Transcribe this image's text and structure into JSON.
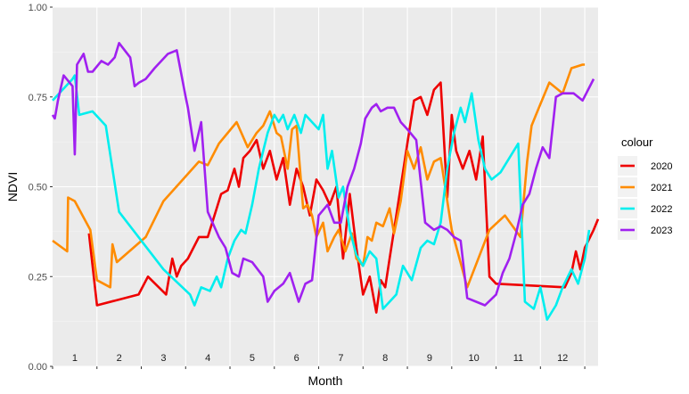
{
  "chart_data": {
    "type": "line",
    "xlabel": "Month",
    "ylabel": "NDVI",
    "xlim": [
      0,
      12.3
    ],
    "ylim": [
      0,
      1
    ],
    "y_ticks": [
      "0.00",
      "0.25",
      "0.50",
      "0.75",
      "1.00"
    ],
    "y_tick_values": [
      0,
      0.25,
      0.5,
      0.75,
      1
    ],
    "month_labels": [
      "1",
      "2",
      "3",
      "4",
      "5",
      "6",
      "7",
      "8",
      "9",
      "10",
      "11",
      "12"
    ],
    "grid": true,
    "legend": {
      "title": "colour",
      "position": "right"
    },
    "series": [
      {
        "name": "2020",
        "color": "#ee0000",
        "x": [
          0.82,
          1.0,
          1.94,
          2.15,
          2.56,
          2.7,
          2.8,
          2.9,
          3.05,
          3.3,
          3.5,
          3.7,
          3.8,
          3.95,
          4.1,
          4.2,
          4.3,
          4.45,
          4.6,
          4.75,
          4.9,
          5.05,
          5.2,
          5.35,
          5.5,
          5.65,
          5.8,
          5.95,
          6.1,
          6.25,
          6.4,
          6.55,
          6.7,
          6.85,
          7.0,
          7.15,
          7.3,
          7.4,
          7.5,
          7.6,
          7.7,
          7.85,
          8.0,
          8.15,
          8.3,
          8.45,
          8.6,
          8.75,
          8.9,
          9.0,
          9.1,
          9.25,
          9.4,
          9.55,
          9.7,
          9.85,
          10.0,
          11.55,
          11.7,
          11.8,
          11.9,
          12.0,
          12.2,
          12.3
        ],
        "values": [
          0.37,
          0.17,
          0.2,
          0.25,
          0.2,
          0.3,
          0.25,
          0.28,
          0.3,
          0.36,
          0.36,
          0.44,
          0.48,
          0.49,
          0.55,
          0.5,
          0.58,
          0.6,
          0.63,
          0.55,
          0.6,
          0.52,
          0.58,
          0.45,
          0.55,
          0.5,
          0.42,
          0.52,
          0.49,
          0.45,
          0.5,
          0.3,
          0.48,
          0.33,
          0.2,
          0.25,
          0.15,
          0.24,
          0.22,
          0.3,
          0.38,
          0.5,
          0.62,
          0.74,
          0.75,
          0.7,
          0.77,
          0.79,
          0.47,
          0.7,
          0.6,
          0.55,
          0.6,
          0.52,
          0.64,
          0.25,
          0.23,
          0.22,
          0.26,
          0.32,
          0.27,
          0.33,
          0.38,
          0.41
        ]
      },
      {
        "name": "2021",
        "color": "#ff8c00",
        "x": [
          0.0,
          0.33,
          0.35,
          0.5,
          0.85,
          1.0,
          1.3,
          1.35,
          1.45,
          2.1,
          2.5,
          3.3,
          3.5,
          3.75,
          4.15,
          4.4,
          4.6,
          4.75,
          4.9,
          5.05,
          5.15,
          5.3,
          5.4,
          5.5,
          5.65,
          5.75,
          5.85,
          5.95,
          6.1,
          6.2,
          6.35,
          6.45,
          6.6,
          6.75,
          6.85,
          7.0,
          7.1,
          7.2,
          7.3,
          7.45,
          7.6,
          7.7,
          7.85,
          8.0,
          8.15,
          8.3,
          8.45,
          8.6,
          8.75,
          9.0,
          9.35,
          9.85,
          10.2,
          10.55,
          10.7,
          10.8,
          10.9,
          11.0,
          11.2,
          11.5,
          11.7,
          11.95,
          12.0
        ],
        "values": [
          0.35,
          0.32,
          0.47,
          0.46,
          0.38,
          0.24,
          0.22,
          0.34,
          0.29,
          0.36,
          0.46,
          0.57,
          0.56,
          0.62,
          0.68,
          0.61,
          0.65,
          0.67,
          0.71,
          0.65,
          0.64,
          0.55,
          0.66,
          0.67,
          0.44,
          0.45,
          0.42,
          0.36,
          0.4,
          0.32,
          0.36,
          0.38,
          0.32,
          0.37,
          0.3,
          0.28,
          0.36,
          0.35,
          0.4,
          0.39,
          0.44,
          0.37,
          0.46,
          0.6,
          0.55,
          0.61,
          0.52,
          0.57,
          0.58,
          0.38,
          0.22,
          0.38,
          0.42,
          0.36,
          0.57,
          0.67,
          0.7,
          0.73,
          0.79,
          0.76,
          0.83,
          0.84,
          0.84
        ]
      },
      {
        "name": "2022",
        "color": "#00eeee",
        "x": [
          0.0,
          0.45,
          0.5,
          0.6,
          0.9,
          1.2,
          1.5,
          2.5,
          3.1,
          3.2,
          3.35,
          3.55,
          3.7,
          3.8,
          3.95,
          4.1,
          4.25,
          4.35,
          4.5,
          4.65,
          4.75,
          4.85,
          5.0,
          5.1,
          5.2,
          5.3,
          5.45,
          5.6,
          5.7,
          5.85,
          6.0,
          6.1,
          6.2,
          6.3,
          6.45,
          6.55,
          6.7,
          6.85,
          7.0,
          7.15,
          7.3,
          7.45,
          7.6,
          7.75,
          7.9,
          8.1,
          8.3,
          8.45,
          8.6,
          8.75,
          8.9,
          9.05,
          9.2,
          9.3,
          9.45,
          9.6,
          9.75,
          9.9,
          10.1,
          10.5,
          10.65,
          10.85,
          11.0,
          11.15,
          11.35,
          11.5,
          11.7,
          11.85,
          12.0,
          12.1
        ],
        "values": [
          0.74,
          0.8,
          0.81,
          0.7,
          0.71,
          0.67,
          0.43,
          0.27,
          0.2,
          0.17,
          0.22,
          0.21,
          0.25,
          0.22,
          0.3,
          0.35,
          0.38,
          0.37,
          0.45,
          0.55,
          0.6,
          0.65,
          0.7,
          0.68,
          0.7,
          0.66,
          0.7,
          0.65,
          0.7,
          0.68,
          0.66,
          0.7,
          0.55,
          0.6,
          0.47,
          0.5,
          0.38,
          0.31,
          0.28,
          0.32,
          0.3,
          0.16,
          0.18,
          0.2,
          0.28,
          0.24,
          0.33,
          0.35,
          0.34,
          0.4,
          0.55,
          0.65,
          0.72,
          0.68,
          0.76,
          0.63,
          0.55,
          0.52,
          0.54,
          0.62,
          0.18,
          0.16,
          0.22,
          0.13,
          0.17,
          0.22,
          0.27,
          0.23,
          0.3,
          0.38
        ]
      },
      {
        "name": "2023",
        "color": "#a020f0",
        "x": [
          0.0,
          0.05,
          0.12,
          0.25,
          0.45,
          0.5,
          0.55,
          0.7,
          0.8,
          0.9,
          1.1,
          1.25,
          1.4,
          1.5,
          1.75,
          1.85,
          1.95,
          2.1,
          2.3,
          2.6,
          2.8,
          3.0,
          3.05,
          3.2,
          3.35,
          3.5,
          3.75,
          3.9,
          4.05,
          4.2,
          4.3,
          4.5,
          4.75,
          4.85,
          5.0,
          5.2,
          5.35,
          5.55,
          5.7,
          5.85,
          6.0,
          6.2,
          6.35,
          6.5,
          6.65,
          6.8,
          6.95,
          7.05,
          7.2,
          7.3,
          7.4,
          7.55,
          7.7,
          7.85,
          8.0,
          8.2,
          8.4,
          8.6,
          8.75,
          8.9,
          9.05,
          9.2,
          9.35,
          9.55,
          9.75,
          10.0,
          10.15,
          10.3,
          10.45,
          10.6,
          10.75,
          10.9,
          11.05,
          11.2,
          11.35,
          11.5,
          11.75,
          11.95,
          12.2
        ],
        "values": [
          0.7,
          0.69,
          0.74,
          0.81,
          0.78,
          0.59,
          0.84,
          0.87,
          0.82,
          0.82,
          0.85,
          0.84,
          0.86,
          0.9,
          0.86,
          0.78,
          0.79,
          0.8,
          0.83,
          0.87,
          0.88,
          0.75,
          0.72,
          0.6,
          0.68,
          0.43,
          0.36,
          0.33,
          0.26,
          0.25,
          0.3,
          0.29,
          0.25,
          0.18,
          0.21,
          0.23,
          0.26,
          0.18,
          0.23,
          0.24,
          0.42,
          0.45,
          0.4,
          0.4,
          0.5,
          0.55,
          0.62,
          0.69,
          0.72,
          0.73,
          0.71,
          0.72,
          0.72,
          0.68,
          0.66,
          0.63,
          0.4,
          0.38,
          0.39,
          0.38,
          0.36,
          0.35,
          0.19,
          0.18,
          0.17,
          0.2,
          0.26,
          0.3,
          0.37,
          0.45,
          0.48,
          0.55,
          0.61,
          0.58,
          0.75,
          0.76,
          0.76,
          0.74,
          0.8
        ]
      }
    ]
  }
}
